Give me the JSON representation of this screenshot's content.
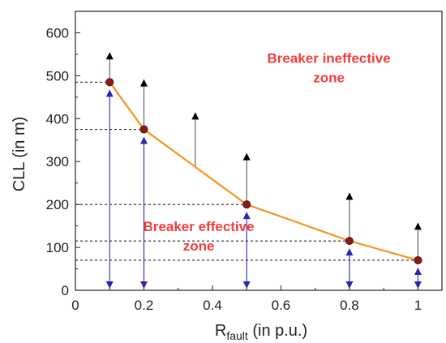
{
  "chart_data": {
    "type": "line",
    "xlabel_main": "R",
    "xlabel_sub": "fault",
    "xlabel_suffix": " (in p.u.)",
    "ylabel": "CLL (in m)",
    "xlim": [
      0,
      1.07
    ],
    "ylim": [
      0,
      650
    ],
    "x_ticks": [
      "0",
      "0.2",
      "0.4",
      "0.6",
      "0.8",
      "1"
    ],
    "y_ticks": [
      "0",
      "100",
      "200",
      "300",
      "400",
      "500",
      "600"
    ],
    "series": [
      {
        "x": [
          0.1,
          0.2,
          0.5,
          0.8,
          1.0
        ],
        "y": [
          485,
          375,
          200,
          115,
          70
        ]
      }
    ],
    "upward_arrows": [
      {
        "x": 0.1,
        "y_from": 485,
        "y_to": 555
      },
      {
        "x": 0.2,
        "y_from": 375,
        "y_to": 492
      },
      {
        "x": 0.35,
        "y_from": 285,
        "y_to": 415
      },
      {
        "x": 0.5,
        "y_from": 200,
        "y_to": 320
      },
      {
        "x": 0.8,
        "y_from": 115,
        "y_to": 228
      },
      {
        "x": 1.0,
        "y_from": 70,
        "y_to": 158
      }
    ],
    "double_arrows": [
      {
        "x": 0.1,
        "y_top": 485
      },
      {
        "x": 0.2,
        "y_top": 375
      },
      {
        "x": 0.5,
        "y_top": 200
      },
      {
        "x": 0.8,
        "y_top": 115
      },
      {
        "x": 1.0,
        "y_top": 70
      }
    ],
    "reference_lines_y": [
      485,
      375,
      200,
      115,
      70
    ],
    "annotations": [
      {
        "text": "Breaker ineffective",
        "x": 0.74,
        "y": 530
      },
      {
        "text": "zone",
        "x": 0.74,
        "y": 485
      },
      {
        "text": "Breaker effective",
        "x": 0.36,
        "y": 138
      },
      {
        "text": "zone",
        "x": 0.36,
        "y": 93
      }
    ],
    "colors": {
      "line": "#f7931e",
      "marker_fill": "#8b1a1a",
      "marker_stroke": "#5a0d0d",
      "double_arrow": "#2828b4",
      "up_arrow": "#000000",
      "annotation": "#f23b3b"
    },
    "grid": false
  }
}
